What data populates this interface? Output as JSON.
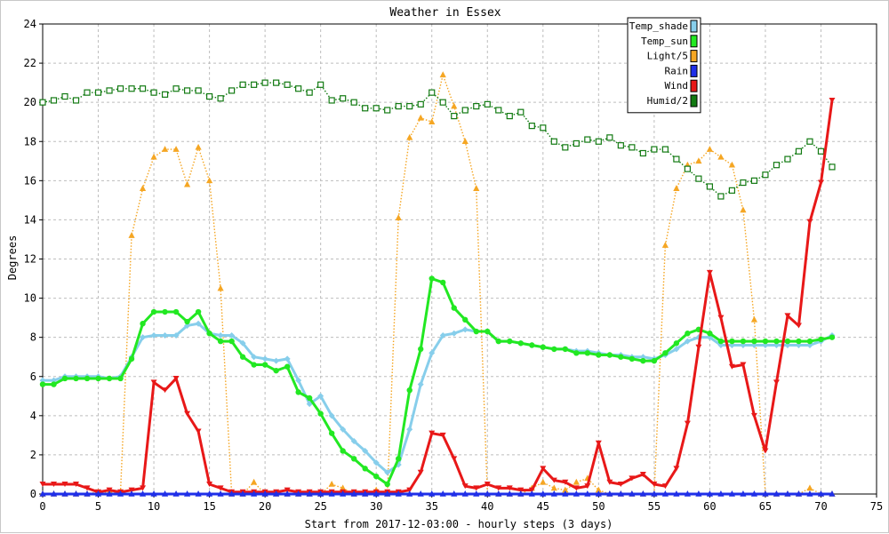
{
  "chart_data": {
    "type": "line",
    "title": "Weather in Essex",
    "xlabel": "Start from 2017-12-03:00 - hourly steps (3 days)",
    "ylabel": "Degrees",
    "xlim": [
      0,
      75
    ],
    "ylim": [
      0,
      24
    ],
    "xticks": [
      0,
      5,
      10,
      15,
      20,
      25,
      30,
      35,
      40,
      45,
      50,
      55,
      60,
      65,
      70,
      75
    ],
    "yticks": [
      0,
      2,
      4,
      6,
      8,
      10,
      12,
      14,
      16,
      18,
      20,
      22,
      24
    ],
    "grid": true,
    "legend_position": "top-right",
    "series": [
      {
        "name": "Temp_shade",
        "color": "#87ceeb",
        "style": "solid",
        "marker": "diamond",
        "values": [
          5.8,
          5.8,
          6.0,
          6.0,
          6.0,
          6.0,
          5.9,
          6.0,
          7.0,
          8.0,
          8.1,
          8.1,
          8.1,
          8.6,
          8.7,
          8.2,
          8.1,
          8.1,
          7.7,
          7.0,
          6.9,
          6.8,
          6.9,
          5.8,
          4.6,
          5.0,
          4.0,
          3.3,
          2.7,
          2.2,
          1.6,
          1.1,
          1.5,
          3.3,
          5.6,
          7.2,
          8.1,
          8.2,
          8.4,
          8.3,
          8.3,
          7.8,
          7.8,
          7.7,
          7.6,
          7.5,
          7.4,
          7.4,
          7.3,
          7.3,
          7.2,
          7.1,
          7.1,
          7.0,
          7.0,
          6.9,
          7.1,
          7.4,
          7.8,
          8.0,
          8.0,
          7.6,
          7.6,
          7.6,
          7.6,
          7.6,
          7.6,
          7.6,
          7.6,
          7.6,
          7.8,
          8.1
        ]
      },
      {
        "name": "Temp_sun",
        "color": "#22e822",
        "style": "solid",
        "marker": "circle",
        "values": [
          5.6,
          5.6,
          5.9,
          5.9,
          5.9,
          5.9,
          5.9,
          5.9,
          6.9,
          8.7,
          9.3,
          9.3,
          9.3,
          8.8,
          9.3,
          8.2,
          7.8,
          7.8,
          7.0,
          6.6,
          6.6,
          6.3,
          6.5,
          5.2,
          4.9,
          4.1,
          3.1,
          2.2,
          1.8,
          1.3,
          0.9,
          0.5,
          1.8,
          5.3,
          7.4,
          11.0,
          10.8,
          9.5,
          8.9,
          8.3,
          8.3,
          7.8,
          7.8,
          7.7,
          7.6,
          7.5,
          7.4,
          7.4,
          7.2,
          7.2,
          7.1,
          7.1,
          7.0,
          6.9,
          6.8,
          6.8,
          7.2,
          7.7,
          8.2,
          8.4,
          8.2,
          7.8,
          7.8,
          7.8,
          7.8,
          7.8,
          7.8,
          7.8,
          7.8,
          7.8,
          7.9,
          8.0
        ]
      },
      {
        "name": "Light/5",
        "color": "#f5a623",
        "style": "dotted",
        "marker": "triangle",
        "values": [
          0,
          0,
          0,
          0,
          0,
          0.1,
          0.1,
          0.1,
          13.2,
          15.6,
          17.2,
          17.6,
          17.6,
          15.8,
          17.7,
          16.0,
          10.5,
          0,
          0,
          0.6,
          0,
          0,
          0,
          0,
          0,
          0,
          0.5,
          0.3,
          0,
          0,
          0.2,
          0,
          14.1,
          18.2,
          19.2,
          19.0,
          21.4,
          19.8,
          18.0,
          15.6,
          0,
          0,
          0,
          0,
          0.3,
          0.6,
          0.3,
          0.2,
          0.6,
          0.8,
          0.2,
          0,
          0,
          0,
          0,
          0,
          12.7,
          15.6,
          16.8,
          17.0,
          17.6,
          17.2,
          16.8,
          14.5,
          8.9,
          0,
          0,
          0,
          0,
          0.3,
          0,
          0
        ]
      },
      {
        "name": "Rain",
        "color": "#1f2fe8",
        "style": "solid",
        "marker": "triangle",
        "values": [
          0,
          0,
          0,
          0,
          0,
          0,
          0,
          0,
          0,
          0,
          0,
          0,
          0,
          0,
          0,
          0,
          0,
          0,
          0,
          0,
          0,
          0,
          0,
          0,
          0,
          0,
          0,
          0,
          0,
          0,
          0,
          0,
          0,
          0,
          0,
          0,
          0,
          0,
          0,
          0,
          0,
          0,
          0,
          0,
          0,
          0,
          0,
          0,
          0,
          0,
          0,
          0,
          0,
          0,
          0,
          0,
          0,
          0,
          0,
          0,
          0,
          0,
          0,
          0,
          0,
          0,
          0,
          0,
          0,
          0,
          0,
          0
        ]
      },
      {
        "name": "Wind",
        "color": "#e81818",
        "style": "solid",
        "marker": "down-triangle",
        "values": [
          0.5,
          0.5,
          0.5,
          0.5,
          0.3,
          0.1,
          0.2,
          0.1,
          0.2,
          0.3,
          5.7,
          5.3,
          5.9,
          4.1,
          3.2,
          0.5,
          0.3,
          0.1,
          0.1,
          0.1,
          0.1,
          0.1,
          0.2,
          0.1,
          0.1,
          0.1,
          0.1,
          0.1,
          0.1,
          0.1,
          0.1,
          0.1,
          0.1,
          0.2,
          1.1,
          3.1,
          3.0,
          1.8,
          0.4,
          0.3,
          0.5,
          0.3,
          0.3,
          0.2,
          0.2,
          1.3,
          0.7,
          0.6,
          0.3,
          0.4,
          2.6,
          0.6,
          0.5,
          0.8,
          1.0,
          0.5,
          0.4,
          1.3,
          3.6,
          7.5,
          11.3,
          9.0,
          6.5,
          6.6,
          4.0,
          2.2,
          5.7,
          9.1,
          8.6,
          13.9,
          15.9,
          20.1
        ]
      },
      {
        "name": "Humid/2",
        "color": "#127a12",
        "style": "dotted",
        "marker": "square",
        "values": [
          20.0,
          20.1,
          20.3,
          20.1,
          20.5,
          20.5,
          20.6,
          20.7,
          20.7,
          20.7,
          20.5,
          20.4,
          20.7,
          20.6,
          20.6,
          20.3,
          20.2,
          20.6,
          20.9,
          20.9,
          21.0,
          21.0,
          20.9,
          20.7,
          20.5,
          20.9,
          20.1,
          20.2,
          20.0,
          19.7,
          19.7,
          19.6,
          19.8,
          19.8,
          19.9,
          20.5,
          20.0,
          19.3,
          19.6,
          19.8,
          19.9,
          19.6,
          19.3,
          19.5,
          18.8,
          18.7,
          18.0,
          17.7,
          17.9,
          18.1,
          18.0,
          18.2,
          17.8,
          17.7,
          17.4,
          17.6,
          17.6,
          17.1,
          16.6,
          16.1,
          15.7,
          15.2,
          15.5,
          15.9,
          16.0,
          16.3,
          16.8,
          17.1,
          17.5,
          18.0,
          17.5,
          16.7
        ]
      }
    ]
  }
}
